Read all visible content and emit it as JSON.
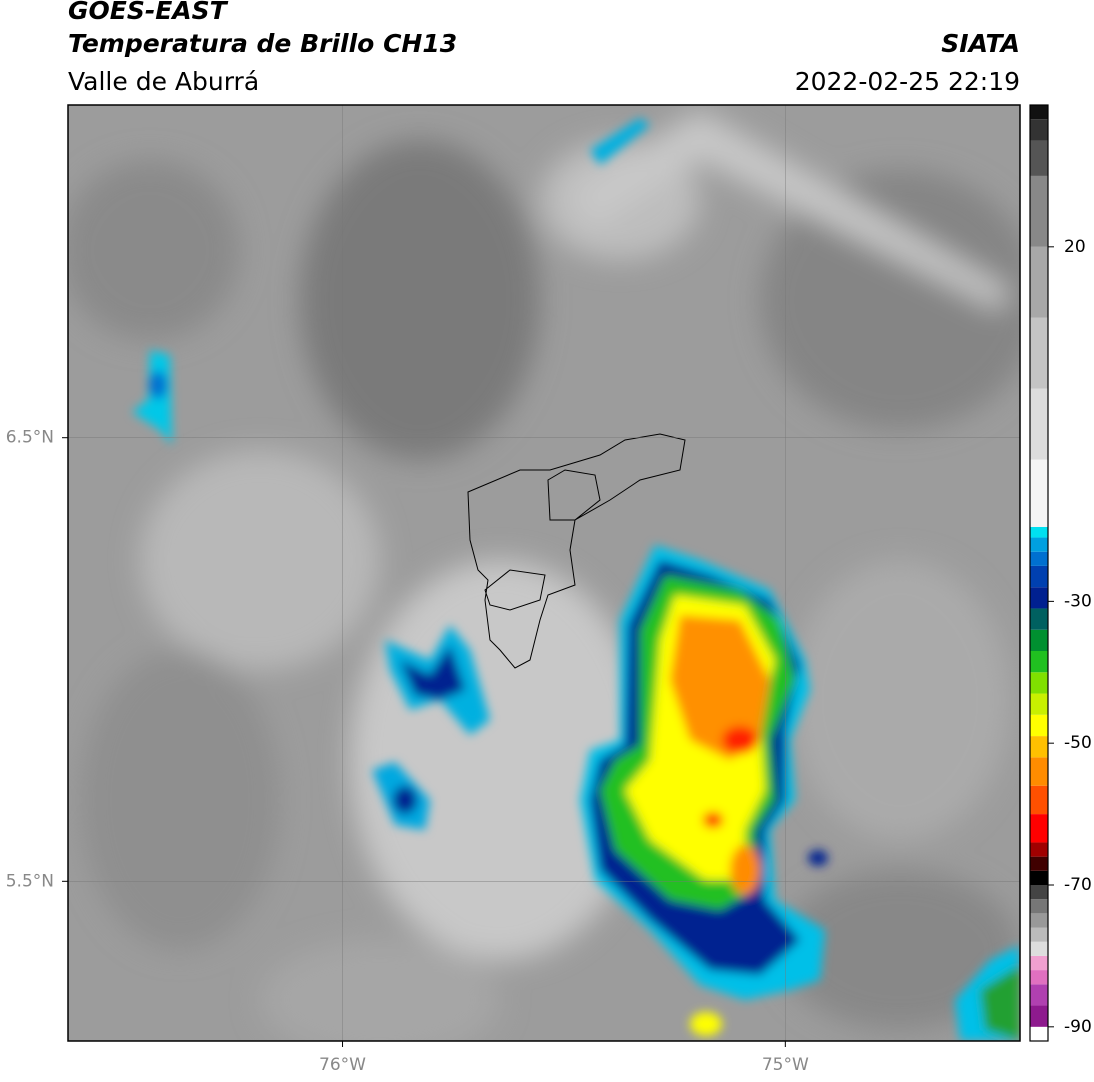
{
  "header": {
    "title": "GOES-EAST",
    "subtitle": "Temperatura de Brillo CH13",
    "region": "Valle de Aburrá",
    "source": "SIATA",
    "datetime": "2022-02-25 22:19"
  },
  "map": {
    "xlim": [
      -76.62,
      -74.47
    ],
    "ylim": [
      5.14,
      7.25
    ],
    "xticks": [
      {
        "value": -76,
        "label": "76°W"
      },
      {
        "value": -75,
        "label": "75°W"
      }
    ],
    "yticks": [
      {
        "value": 6.5,
        "label": "6.5°N"
      },
      {
        "value": 5.5,
        "label": "5.5°N"
      }
    ]
  },
  "colorbar": {
    "lim": [
      -92,
      40
    ],
    "ticks": [
      20,
      -30,
      -50,
      -70,
      -90
    ],
    "stops": [
      {
        "value": -92,
        "color": "#ffffff"
      },
      {
        "value": -90,
        "color": "#8e1a8e"
      },
      {
        "value": -87,
        "color": "#b040b0"
      },
      {
        "value": -84,
        "color": "#e070c0"
      },
      {
        "value": -82,
        "color": "#f0a0d0"
      },
      {
        "value": -80,
        "color": "#dddddd"
      },
      {
        "value": -78,
        "color": "#bbbbbb"
      },
      {
        "value": -76,
        "color": "#999999"
      },
      {
        "value": -74,
        "color": "#777777"
      },
      {
        "value": -72,
        "color": "#444444"
      },
      {
        "value": -70,
        "color": "#000000"
      },
      {
        "value": -68,
        "color": "#400000"
      },
      {
        "value": -66,
        "color": "#a00000"
      },
      {
        "value": -64,
        "color": "#ff0000"
      },
      {
        "value": -60,
        "color": "#ff5000"
      },
      {
        "value": -56,
        "color": "#ff8c00"
      },
      {
        "value": -52,
        "color": "#ffc000"
      },
      {
        "value": -49,
        "color": "#ffff00"
      },
      {
        "value": -46,
        "color": "#c8f000"
      },
      {
        "value": -43,
        "color": "#80e000"
      },
      {
        "value": -40,
        "color": "#20c020"
      },
      {
        "value": -37,
        "color": "#009030"
      },
      {
        "value": -34,
        "color": "#006060"
      },
      {
        "value": -31,
        "color": "#002090"
      },
      {
        "value": -28,
        "color": "#0040b0"
      },
      {
        "value": -25,
        "color": "#0070d0"
      },
      {
        "value": -23,
        "color": "#00a0e0"
      },
      {
        "value": -21,
        "color": "#00e0f0"
      },
      {
        "value": -19.5,
        "color": "#f4f4f4"
      },
      {
        "value": -10,
        "color": "#dcdcdc"
      },
      {
        "value": 0,
        "color": "#c4c4c4"
      },
      {
        "value": 10,
        "color": "#a8a8a8"
      },
      {
        "value": 20,
        "color": "#888888"
      },
      {
        "value": 30,
        "color": "#555555"
      },
      {
        "value": 35,
        "color": "#333333"
      },
      {
        "value": 38,
        "color": "#111111"
      }
    ]
  }
}
